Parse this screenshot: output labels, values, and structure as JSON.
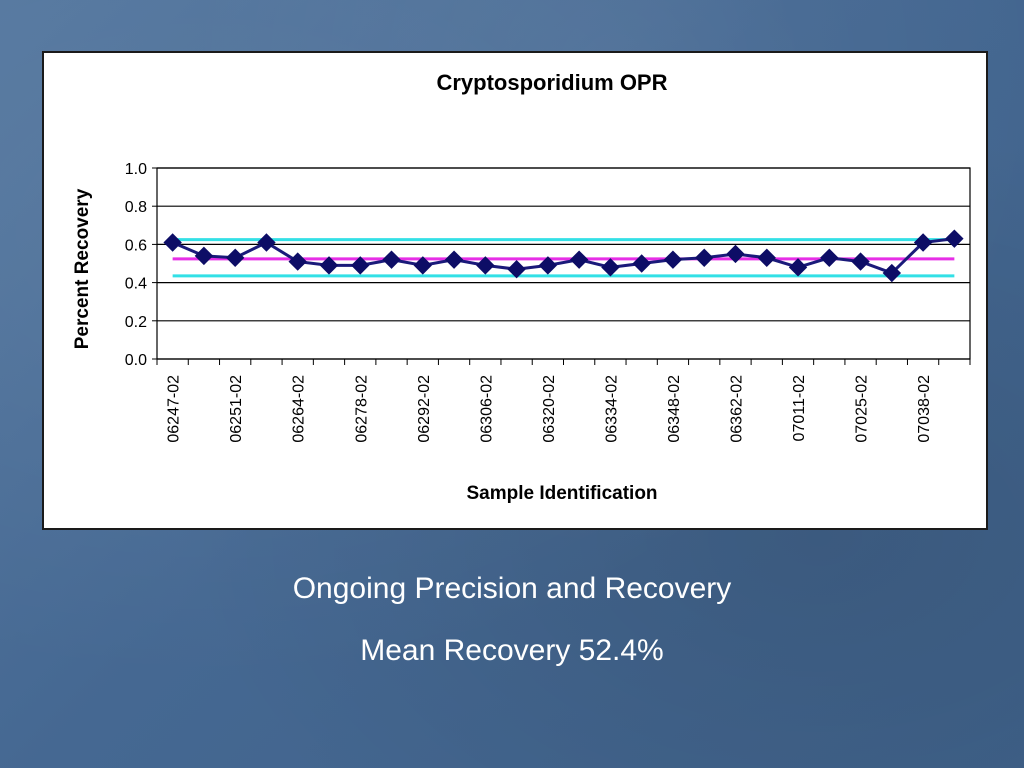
{
  "colors": {
    "series": "#1a1a7a",
    "marker": "#0d0d66",
    "mean_line": "#e62ee6",
    "limit_line": "#33e0e6",
    "caption_text": "#ffffff",
    "background": "#4a6d96"
  },
  "captions": {
    "line1": "Ongoing Precision and Recovery",
    "line2": "Mean Recovery 52.4%"
  },
  "chart_data": {
    "type": "line",
    "title": "Cryptosporidium OPR",
    "xlabel": "Sample Identification",
    "ylabel": "Percent Recovery",
    "ylim": [
      0.0,
      1.0
    ],
    "yticks": [
      "0.0",
      "0.2",
      "0.4",
      "0.6",
      "0.8",
      "1.0"
    ],
    "grid": "horizontal",
    "category_labels": [
      "06247-02",
      "06251-02",
      "06264-02",
      "06278-02",
      "06292-02",
      "06306-02",
      "06320-02",
      "06334-02",
      "06348-02",
      "06362-02",
      "07011-02",
      "07025-02",
      "07038-02"
    ],
    "point_count": 26,
    "series": [
      {
        "values": [
          0.61,
          0.54,
          0.53,
          0.61,
          0.51,
          0.49,
          0.49,
          0.52,
          0.49,
          0.52,
          0.49,
          0.47,
          0.49,
          0.52,
          0.48,
          0.5,
          0.52,
          0.53,
          0.55,
          0.53,
          0.48,
          0.53,
          0.51,
          0.45,
          0.61,
          0.63
        ]
      }
    ],
    "reference_lines": {
      "mean": 0.524,
      "upper_limit": 0.625,
      "lower_limit": 0.435
    }
  }
}
